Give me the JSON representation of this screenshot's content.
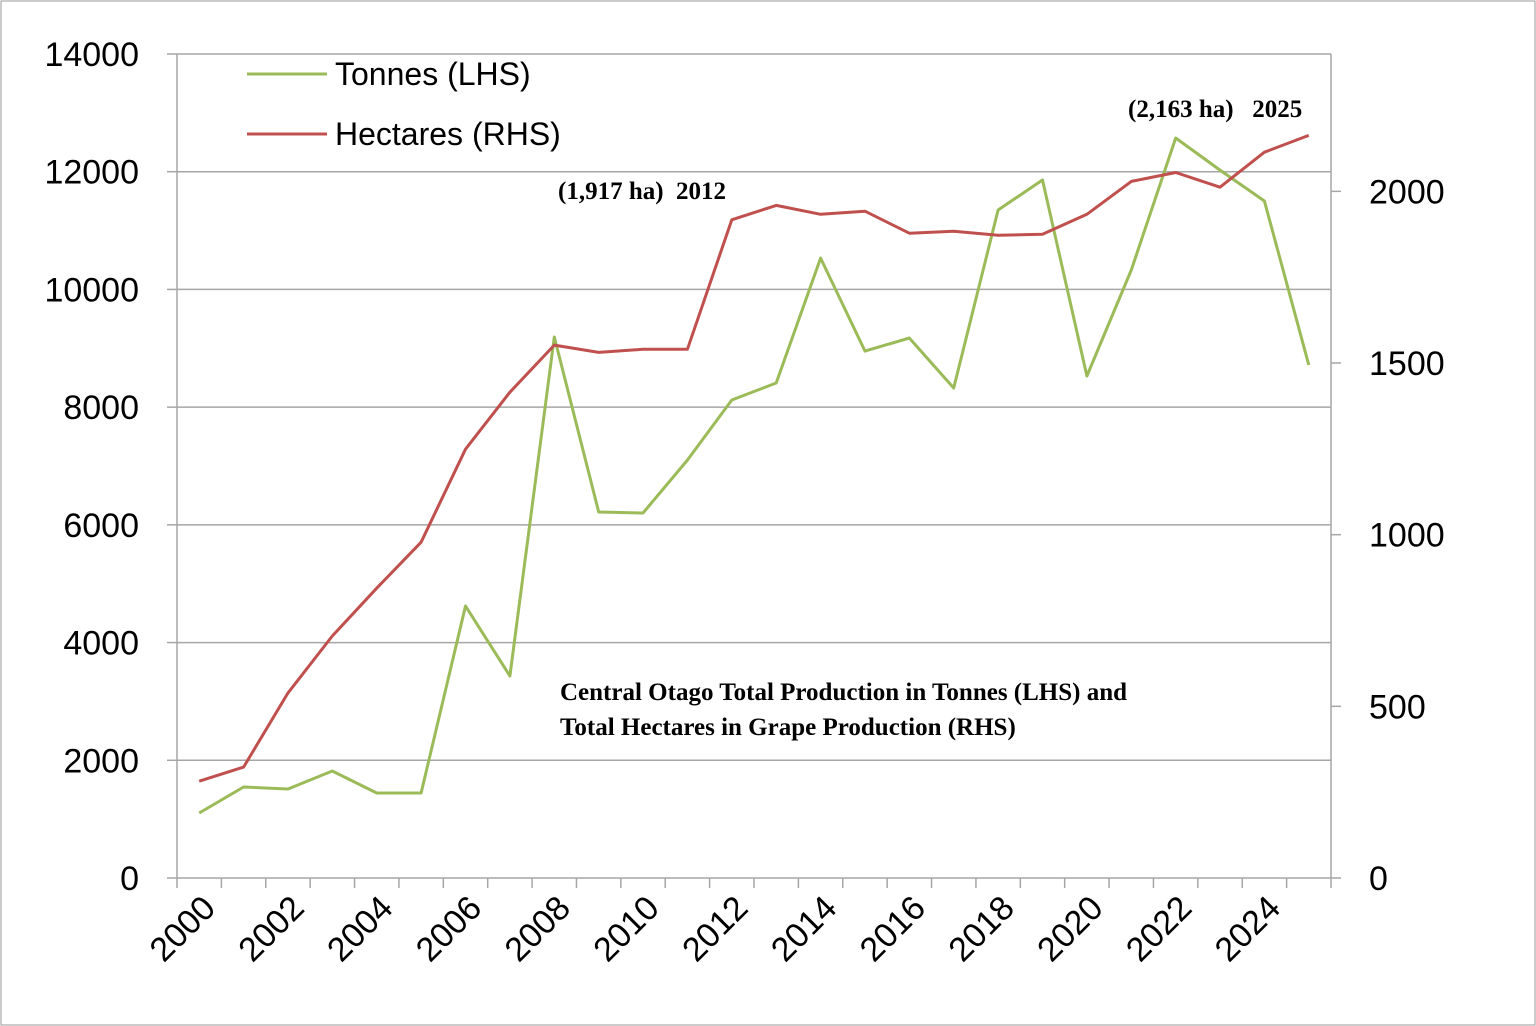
{
  "chart_data": {
    "type": "line",
    "title": "Central Otago Total Production in Tonnes (LHS) and Total Hectares in Grape Production (RHS)",
    "title_lines": [
      "Central Otago Total Production in Tonnes (LHS) and",
      "Total Hectares in Grape Production (RHS)"
    ],
    "x": [
      2000,
      2001,
      2002,
      2003,
      2004,
      2005,
      2006,
      2007,
      2008,
      2009,
      2010,
      2011,
      2012,
      2013,
      2014,
      2015,
      2016,
      2017,
      2018,
      2019,
      2020,
      2021,
      2022,
      2023,
      2024,
      2025
    ],
    "x_tick_labels": [
      "2000",
      "2002",
      "2004",
      "2006",
      "2008",
      "2010",
      "2012",
      "2014",
      "2016",
      "2018",
      "2020",
      "2022",
      "2024"
    ],
    "y_left": {
      "ylim": [
        0,
        14000
      ],
      "ticks": [
        "0",
        "2000",
        "4000",
        "6000",
        "8000",
        "10000",
        "12000",
        "14000"
      ]
    },
    "y_right": {
      "ylim": [
        0,
        2400
      ],
      "ticks": [
        "0",
        "500",
        "1000",
        "1500",
        "2000"
      ]
    },
    "grid": true,
    "legend_position": "top-left",
    "series": [
      {
        "name": "Tonnes (LHS)",
        "axis": "left",
        "color": "#9BBB59",
        "values": [
          1104,
          1546,
          1512,
          1818,
          1444,
          1444,
          4621,
          3432,
          9191,
          6218,
          6201,
          7101,
          8121,
          8410,
          10533,
          8953,
          9174,
          8325,
          11349,
          11859,
          8529,
          10330,
          12572,
          12028,
          11502,
          8716
        ]
      },
      {
        "name": "Hectares (RHS)",
        "axis": "right",
        "color": "#C0504D",
        "values": [
          282,
          323,
          539,
          705,
          844,
          978,
          1249,
          1415,
          1552,
          1531,
          1540,
          1540,
          1917,
          1959,
          1933,
          1942,
          1878,
          1884,
          1872,
          1875,
          1933,
          2029,
          2055,
          2012,
          2114,
          2163
        ]
      }
    ],
    "annotations": [
      {
        "text": "(1,917 ha)  2012",
        "x": 2010
      },
      {
        "text": "(2,163 ha)   2025",
        "x": 2023
      }
    ]
  }
}
